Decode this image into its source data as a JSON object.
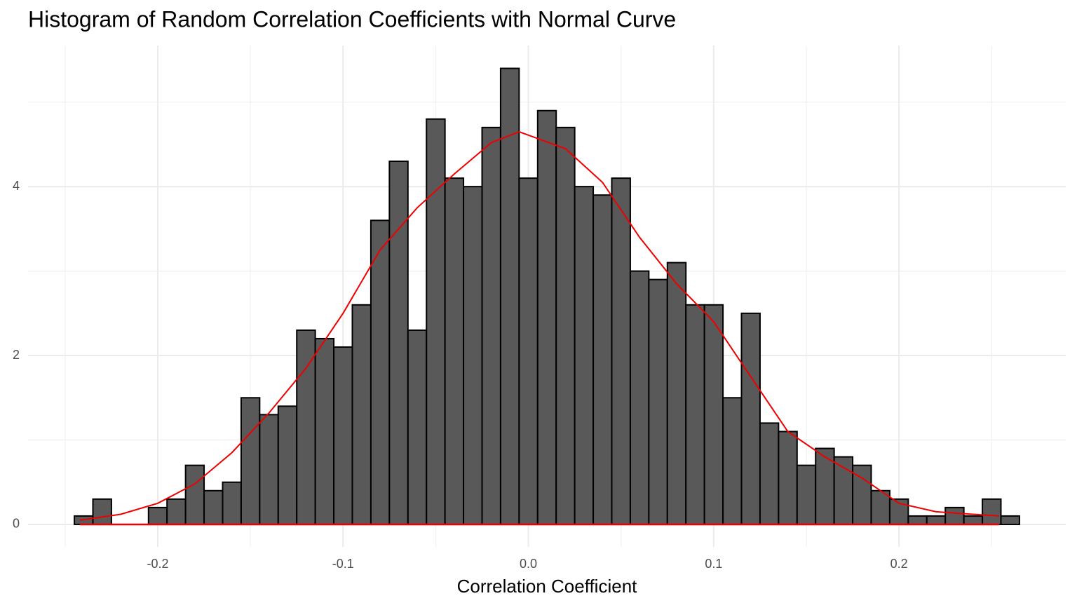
{
  "chart_data": {
    "type": "histogram",
    "title": "Histogram of Random Correlation Coefficients with Normal Curve",
    "x_label": "Correlation Coefficient",
    "bins": [
      -0.245,
      -0.235,
      -0.225,
      -0.215,
      -0.205,
      -0.195,
      -0.185,
      -0.175,
      -0.165,
      -0.155,
      -0.145,
      -0.135,
      -0.125,
      -0.115,
      -0.105,
      -0.095,
      -0.085,
      -0.075,
      -0.065,
      -0.055,
      -0.045,
      -0.035,
      -0.025,
      -0.015,
      -0.005,
      0.005,
      0.015,
      0.025,
      0.035,
      0.045,
      0.055,
      0.065,
      0.075,
      0.085,
      0.095,
      0.105,
      0.115,
      0.125,
      0.135,
      0.145,
      0.155,
      0.165,
      0.175,
      0.185,
      0.195,
      0.205,
      0.215,
      0.225,
      0.235,
      0.245,
      0.255,
      0.265
    ],
    "values": [
      0.1,
      0.3,
      0,
      0,
      0.2,
      0.3,
      0.7,
      0.4,
      0.5,
      1.5,
      1.3,
      1.4,
      2.3,
      2.2,
      2.1,
      2.6,
      3.6,
      4.3,
      2.3,
      4.8,
      4.1,
      4.0,
      4.7,
      5.4,
      4.1,
      4.9,
      4.7,
      4.0,
      3.9,
      4.1,
      3.0,
      2.9,
      3.1,
      2.6,
      2.6,
      1.5,
      2.5,
      1.2,
      1.1,
      0.7,
      0.9,
      0.8,
      0.7,
      0.4,
      0.3,
      0.1,
      0.1,
      0.2,
      0.1,
      0.3,
      0.1
    ],
    "color": "#595959",
    "curve": {
      "x": [
        -0.242,
        -0.22,
        -0.2,
        -0.18,
        -0.16,
        -0.14,
        -0.12,
        -0.1,
        -0.08,
        -0.06,
        -0.04,
        -0.02,
        -0.005,
        0.02,
        0.04,
        0.06,
        0.08,
        0.1,
        0.12,
        0.14,
        0.16,
        0.18,
        0.2,
        0.22,
        0.24,
        0.254
      ],
      "y": [
        0.05,
        0.12,
        0.25,
        0.48,
        0.85,
        1.32,
        1.85,
        2.5,
        3.25,
        3.75,
        4.15,
        4.52,
        4.65,
        4.45,
        4.05,
        3.4,
        2.85,
        2.4,
        1.75,
        1.1,
        0.8,
        0.55,
        0.25,
        0.15,
        0.12,
        0.1
      ],
      "color": "#ee0000"
    },
    "xlim": [
      -0.27,
      0.29
    ],
    "ylim": [
      -0.266,
      5.67
    ],
    "xticks": [
      -0.2,
      -0.1,
      {
        "value": 0,
        "label": "0.0"
      },
      0.1,
      0.2
    ],
    "yticks": [
      0,
      2,
      4
    ],
    "grid": true
  }
}
